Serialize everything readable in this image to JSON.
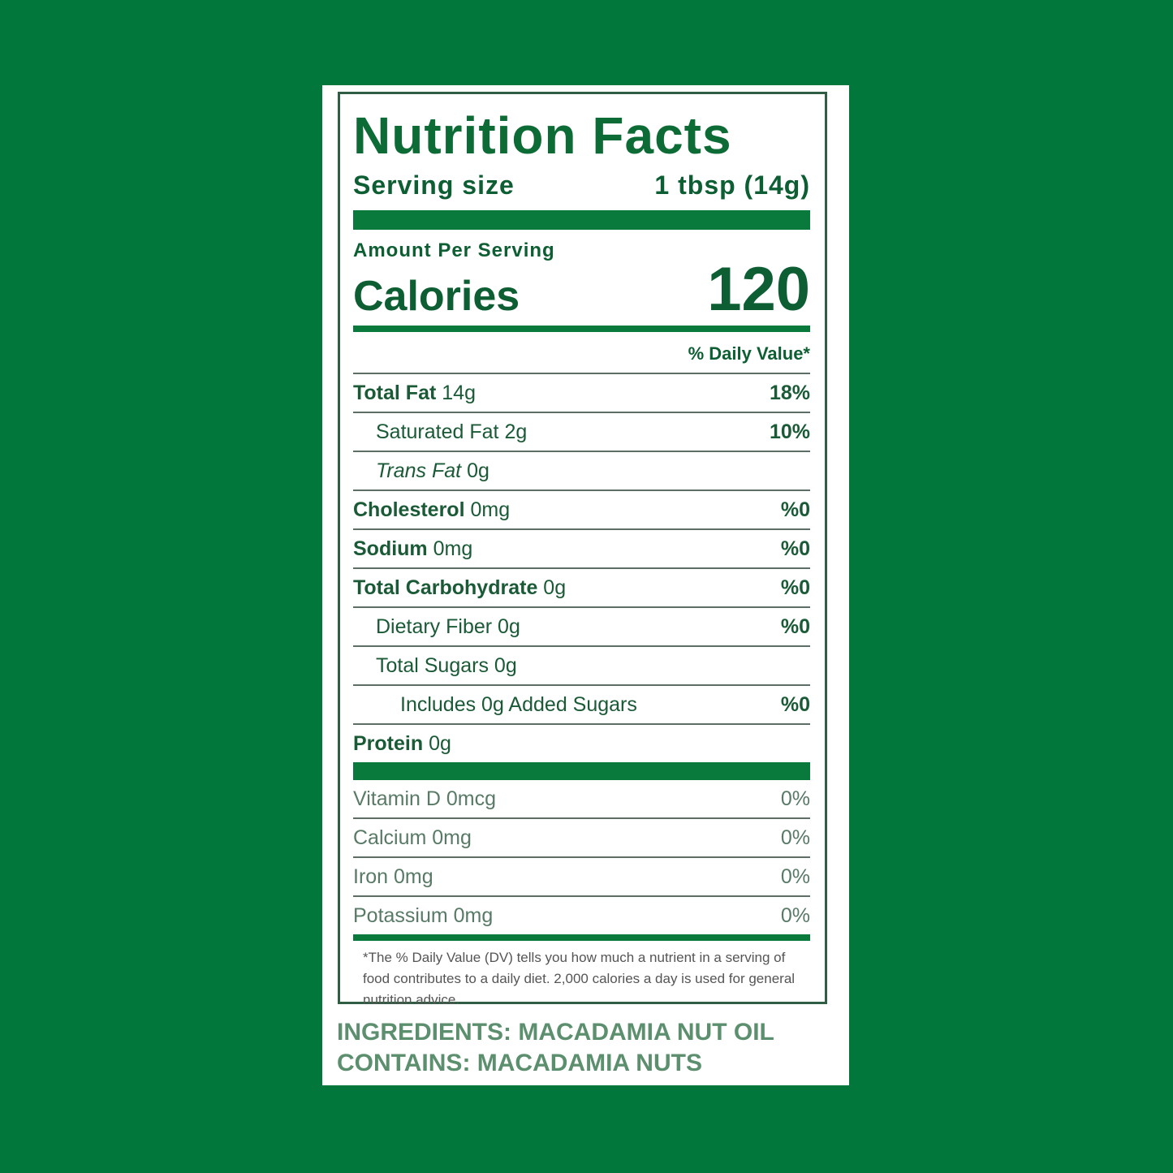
{
  "label": {
    "title": "Nutrition Facts",
    "serving_size_label": "Serving size",
    "serving_size_value": "1 tbsp (14g)",
    "amount_per_serving": "Amount Per Serving",
    "calories_label": "Calories",
    "calories_value": "120",
    "daily_value_header": "% Daily Value*",
    "nutrients": [
      {
        "name": "Total Fat",
        "amount": "14g",
        "dv": "18%"
      },
      {
        "name": "Saturated Fat",
        "amount": "2g",
        "dv": "10%"
      },
      {
        "name": "Trans Fat",
        "amount": "0g",
        "dv": ""
      },
      {
        "name": "Cholesterol",
        "amount": "0mg",
        "dv": "%0"
      },
      {
        "name": "Sodium",
        "amount": "0mg",
        "dv": "%0"
      },
      {
        "name": "Total Carbohydrate",
        "amount": "0g",
        "dv": "%0"
      },
      {
        "name": "Dietary Fiber",
        "amount": "0g",
        "dv": "%0"
      },
      {
        "name": "Total Sugars",
        "amount": "0g",
        "dv": ""
      },
      {
        "name": "Includes 0g Added Sugars",
        "amount": "",
        "dv": "%0"
      },
      {
        "name": "Protein",
        "amount": "0g",
        "dv": ""
      }
    ],
    "vitamins": [
      {
        "name": "Vitamin D 0mcg",
        "dv": "0%"
      },
      {
        "name": "Calcium 0mg",
        "dv": "0%"
      },
      {
        "name": "Iron 0mg",
        "dv": "0%"
      },
      {
        "name": "Potassium 0mg",
        "dv": "0%"
      }
    ],
    "footnote": "*The % Daily Value (DV) tells you how much a nutrient in a serving of food contributes to a daily diet. 2,000 calories a day is used for general nutrition advice."
  },
  "ingredients": "INGREDIENTS: MACADAMIA NUT OIL",
  "contains": "CONTAINS: MACADAMIA NUTS",
  "colors": {
    "background": "#01773c",
    "text": "#0d5e32",
    "bars": "#0a7a3c"
  }
}
